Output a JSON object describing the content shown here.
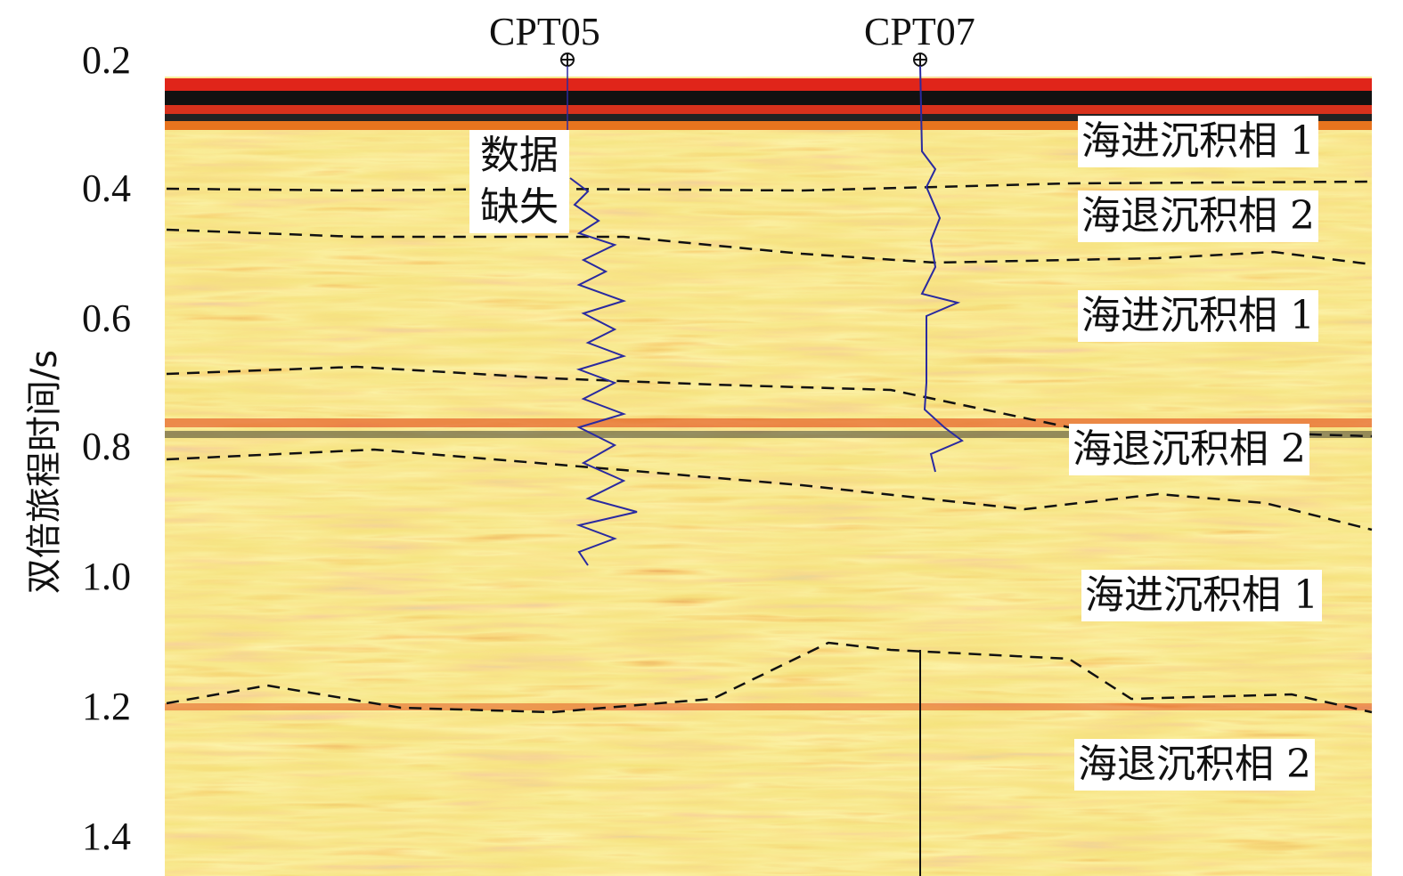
{
  "y_axis": {
    "label": "双倍旅程时间/s",
    "ticks": [
      "0.2",
      "0.4",
      "0.6",
      "0.8",
      "1.0",
      "1.2",
      "1.4"
    ]
  },
  "wells": [
    {
      "name": "CPT05"
    },
    {
      "name": "CPT07"
    }
  ],
  "missing_data_label": "数据缺失",
  "facies_labels": [
    "海进沉积相 1",
    "海退沉积相 2",
    "海进沉积相 1",
    "海退沉积相 2",
    "海进沉积相 1",
    "海退沉积相 2"
  ]
}
